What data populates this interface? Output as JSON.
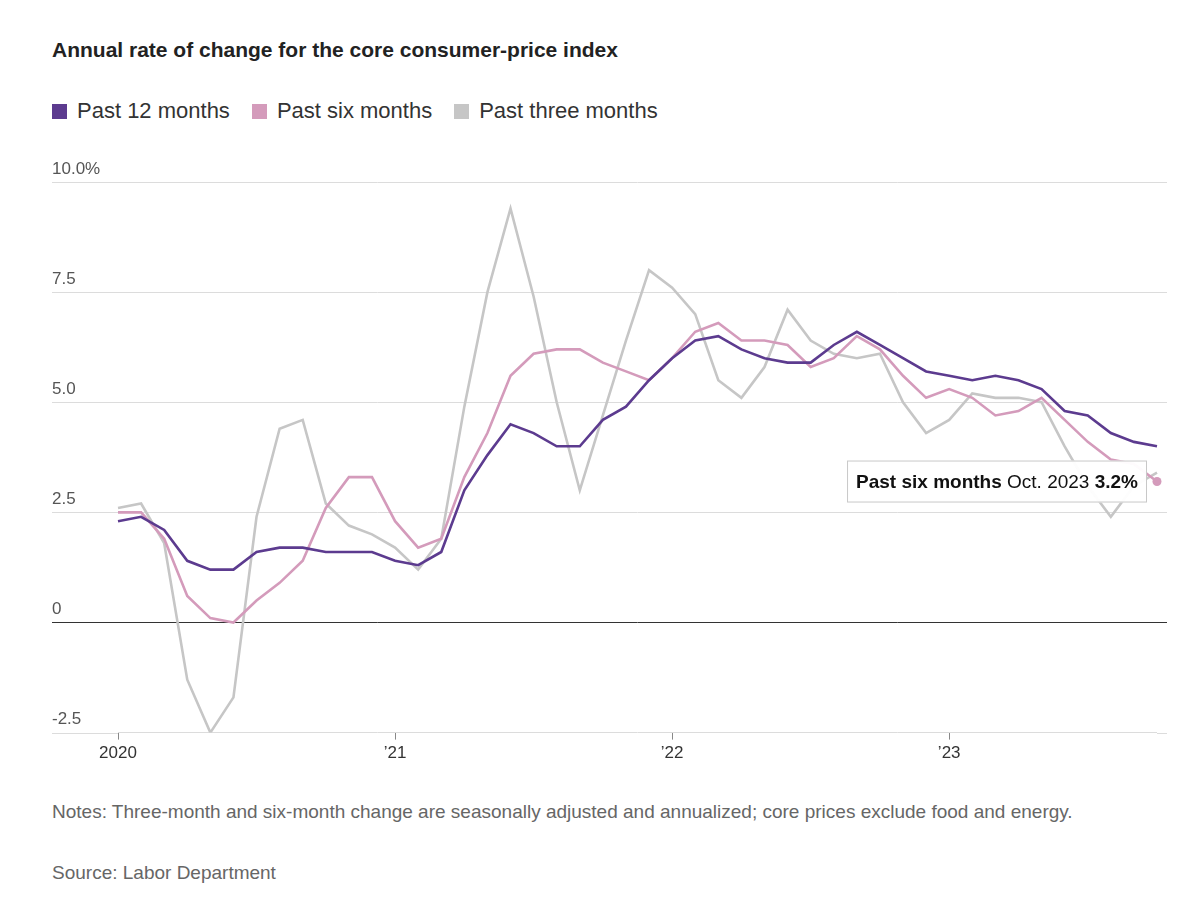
{
  "chart_data": {
    "type": "line",
    "title": "Annual rate of change for the core consumer-price index",
    "notes": "Notes: Three-month and six-month change are seasonally adjusted and annualized; core prices exclude food and energy.",
    "source": "Source: Labor Department",
    "categories": [
      "2020",
      null,
      null,
      null,
      null,
      null,
      null,
      null,
      null,
      null,
      null,
      null,
      "’21",
      null,
      null,
      null,
      null,
      null,
      null,
      null,
      null,
      null,
      null,
      null,
      "’22",
      null,
      null,
      null,
      null,
      null,
      null,
      null,
      null,
      null,
      null,
      null,
      "’23",
      null,
      null,
      null,
      null,
      null,
      null,
      null,
      null,
      null
    ],
    "series": [
      {
        "name": "Past 12 months",
        "color": "#5c3b8f",
        "values": [
          2.3,
          2.4,
          2.1,
          1.4,
          1.2,
          1.2,
          1.6,
          1.7,
          1.7,
          1.6,
          1.6,
          1.6,
          1.4,
          1.3,
          1.6,
          3.0,
          3.8,
          4.5,
          4.3,
          4.0,
          4.0,
          4.6,
          4.9,
          5.5,
          6.0,
          6.4,
          6.5,
          6.2,
          6.0,
          5.9,
          5.9,
          6.3,
          6.6,
          6.3,
          6.0,
          5.7,
          5.6,
          5.5,
          5.6,
          5.5,
          5.3,
          4.8,
          4.7,
          4.3,
          4.1,
          4.0
        ]
      },
      {
        "name": "Past six months",
        "color": "#d49bbb",
        "values": [
          2.5,
          2.5,
          1.9,
          0.6,
          0.1,
          0.0,
          0.5,
          0.9,
          1.4,
          2.6,
          3.3,
          3.3,
          2.3,
          1.7,
          1.9,
          3.3,
          4.3,
          5.6,
          6.1,
          6.2,
          6.2,
          5.9,
          5.7,
          5.5,
          6.0,
          6.6,
          6.8,
          6.4,
          6.4,
          6.3,
          5.8,
          6.0,
          6.5,
          6.2,
          5.6,
          5.1,
          5.3,
          5.1,
          4.7,
          4.8,
          5.1,
          4.6,
          4.1,
          3.7,
          3.6,
          3.2
        ]
      },
      {
        "name": "Past three months",
        "color": "#c6c6c6",
        "values": [
          2.6,
          2.7,
          1.8,
          -1.3,
          -2.5,
          -1.7,
          2.4,
          4.4,
          4.6,
          2.7,
          2.2,
          2.0,
          1.7,
          1.2,
          1.9,
          4.9,
          7.5,
          9.4,
          7.4,
          5.0,
          3.0,
          4.7,
          6.4,
          8.0,
          7.6,
          7.0,
          5.5,
          5.1,
          5.8,
          7.1,
          6.4,
          6.1,
          6.0,
          6.1,
          5.0,
          4.3,
          4.6,
          5.2,
          5.1,
          5.1,
          5.0,
          4.0,
          3.1,
          2.4,
          3.1,
          3.4
        ]
      }
    ],
    "ylim": [
      -2.5,
      10
    ],
    "yticks": [
      -2.5,
      0,
      2.5,
      {
        "value": 5,
        "label": "5.0"
      },
      7.5,
      {
        "value": 10,
        "label": "10.0%"
      }
    ],
    "grid": true,
    "legend": "top-left",
    "annotations": [
      {
        "series": "Past six months",
        "label": "Oct. 2023",
        "value": 3.2,
        "value_label": "3.2%"
      }
    ]
  }
}
